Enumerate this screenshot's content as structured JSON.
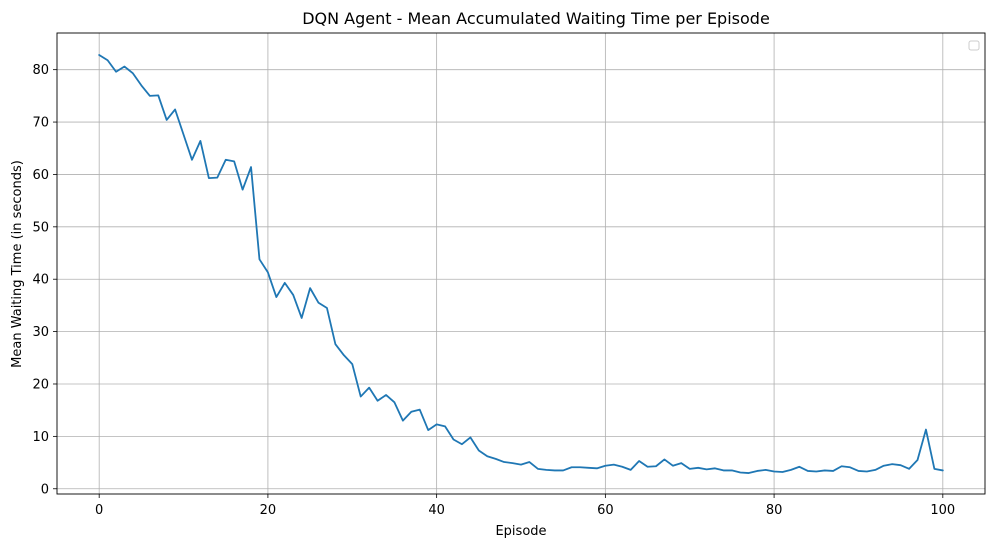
{
  "chart_data": {
    "type": "line",
    "title": "DQN Agent - Mean Accumulated Waiting Time per Episode",
    "xlabel": "Episode",
    "ylabel": "Mean Waiting Time (in seconds)",
    "xlim": [
      -5,
      105
    ],
    "ylim": [
      -1,
      87
    ],
    "xticks": [
      0,
      20,
      40,
      60,
      80,
      100
    ],
    "yticks": [
      0,
      10,
      20,
      30,
      40,
      50,
      60,
      70,
      80
    ],
    "grid": true,
    "legend": "top-right (empty)",
    "series": [
      {
        "name": "",
        "color": "#1f77b4",
        "x": [
          0,
          1,
          2,
          3,
          4,
          5,
          6,
          7,
          8,
          9,
          10,
          11,
          12,
          13,
          14,
          15,
          16,
          17,
          18,
          19,
          20,
          21,
          22,
          23,
          24,
          25,
          26,
          27,
          28,
          29,
          30,
          31,
          32,
          33,
          34,
          35,
          36,
          37,
          38,
          39,
          40,
          41,
          42,
          43,
          44,
          45,
          46,
          47,
          48,
          49,
          50,
          51,
          52,
          53,
          54,
          55,
          56,
          57,
          58,
          59,
          60,
          61,
          62,
          63,
          64,
          65,
          66,
          67,
          68,
          69,
          70,
          71,
          72,
          73,
          74,
          75,
          76,
          77,
          78,
          79,
          80,
          81,
          82,
          83,
          84,
          85,
          86,
          87,
          88,
          89,
          90,
          91,
          92,
          93,
          94,
          95,
          96,
          97,
          98,
          99,
          100
        ],
        "y": [
          82.8,
          81.8,
          79.6,
          80.6,
          79.3,
          77.0,
          75.0,
          75.1,
          70.4,
          72.4,
          67.6,
          62.8,
          66.4,
          59.3,
          59.4,
          62.8,
          62.5,
          57.1,
          61.4,
          43.8,
          41.3,
          36.6,
          39.3,
          37.0,
          32.6,
          38.3,
          35.5,
          34.5,
          27.6,
          25.5,
          23.8,
          17.6,
          19.3,
          16.8,
          17.9,
          16.5,
          13.0,
          14.7,
          15.1,
          11.2,
          12.3,
          11.9,
          9.4,
          8.5,
          9.8,
          7.3,
          6.2,
          5.7,
          5.1,
          4.9,
          4.6,
          5.1,
          3.8,
          3.6,
          3.5,
          3.5,
          4.1,
          4.1,
          4.0,
          3.9,
          4.4,
          4.6,
          4.2,
          3.6,
          5.3,
          4.2,
          4.3,
          5.6,
          4.4,
          4.9,
          3.8,
          4.0,
          3.7,
          3.9,
          3.5,
          3.5,
          3.1,
          3.0,
          3.4,
          3.6,
          3.3,
          3.2,
          3.6,
          4.2,
          3.4,
          3.3,
          3.5,
          3.4,
          4.3,
          4.1,
          3.4,
          3.3,
          3.6,
          4.4,
          4.7,
          4.5,
          3.8,
          5.5,
          11.3,
          3.8,
          3.5
        ]
      }
    ]
  }
}
